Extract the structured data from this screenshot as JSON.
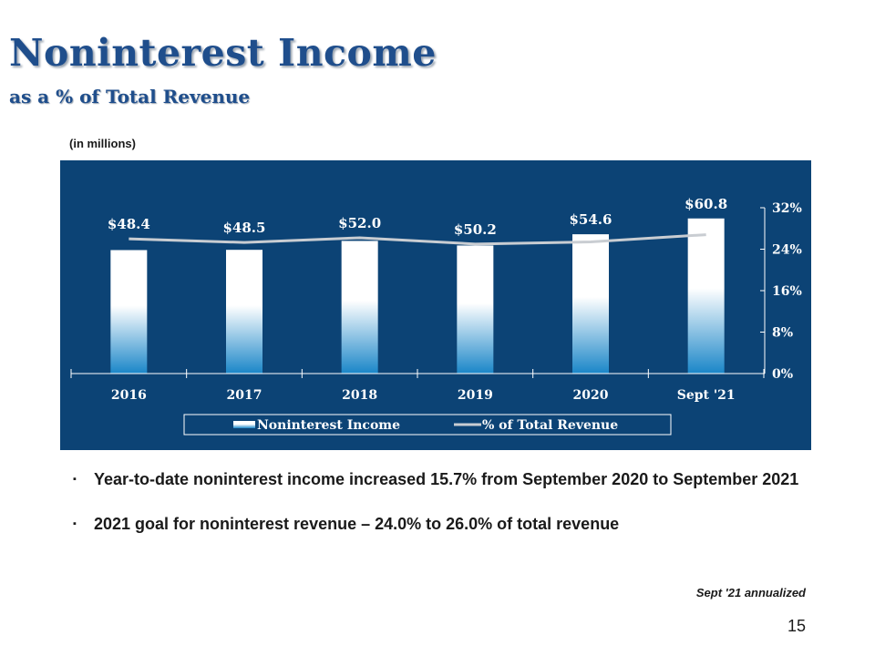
{
  "slide": {
    "title": "Noninterest Income",
    "subtitle": "as a % of Total Revenue",
    "units_note": "(in millions)",
    "bullets": [
      "Year-to-date noninterest income increased 15.7% from September 2020 to September 2021",
      "2021 goal for noninterest revenue – 24.0% to 26.0% of total revenue"
    ],
    "bullet_marker": "▪",
    "footnote": "Sept '21 annualized",
    "page_number": "15"
  },
  "colors": {
    "title": "#1f4e8c",
    "chart_background": "#0c4375",
    "bar_top": "#ffffff",
    "bar_bottom": "#1a86c8",
    "line": "#c9cdd2",
    "chart_text": "#ffffff"
  },
  "chart_data": {
    "type": "bar",
    "categories": [
      "2016",
      "2017",
      "2018",
      "2019",
      "2020",
      "Sept '21"
    ],
    "series": [
      {
        "name": "Noninterest Income",
        "type": "bar",
        "values": [
          48.4,
          48.5,
          52.0,
          50.2,
          54.6,
          60.8
        ],
        "labels": [
          "$48.4",
          "$48.5",
          "$52.0",
          "$50.2",
          "$54.6",
          "$60.8"
        ]
      },
      {
        "name": "% of Total Revenue",
        "type": "line",
        "axis": "right",
        "values": [
          26.0,
          25.3,
          26.2,
          25.0,
          25.4,
          26.8
        ]
      }
    ],
    "right_axis": {
      "ticks": [
        "0%",
        "8%",
        "16%",
        "24%",
        "32%"
      ],
      "tick_values": [
        0,
        8,
        16,
        24,
        32
      ],
      "range": [
        0,
        32
      ]
    },
    "legend": {
      "position": "bottom",
      "entries": [
        "Noninterest Income",
        "% of Total Revenue"
      ]
    }
  }
}
